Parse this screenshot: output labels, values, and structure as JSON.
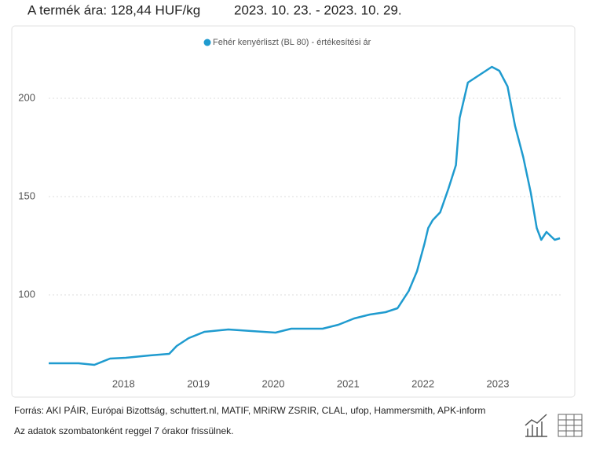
{
  "header": {
    "price": "A termék ára: 128,44 HUF/kg",
    "period": "2023. 10. 23. - 2023. 10. 29."
  },
  "chart_data": {
    "type": "line",
    "x": [
      2017.0,
      2017.4,
      2017.61,
      2017.82,
      2018.03,
      2018.35,
      2018.61,
      2018.71,
      2018.87,
      2019.08,
      2019.4,
      2019.71,
      2020.03,
      2020.24,
      2020.45,
      2020.66,
      2020.87,
      2021.08,
      2021.29,
      2021.5,
      2021.66,
      2021.81,
      2021.92,
      2022.02,
      2022.07,
      2022.13,
      2022.23,
      2022.34,
      2022.44,
      2022.49,
      2022.6,
      2022.76,
      2022.92,
      2023.02,
      2023.13,
      2023.23,
      2023.34,
      2023.44,
      2023.52,
      2023.58,
      2023.65,
      2023.76,
      2023.83
    ],
    "series": [
      {
        "name": "Fehér kenyérliszt (BL 80) - értékesítési ár",
        "color": "#1f9bcf",
        "values": [
          65.2,
          65.2,
          64.4,
          67.6,
          68,
          69.2,
          70,
          74,
          78,
          81.2,
          82.4,
          81.6,
          80.8,
          82.8,
          82.8,
          82.8,
          84.8,
          88,
          90,
          91.2,
          93.2,
          102,
          112,
          126,
          134,
          138,
          142,
          154,
          166,
          190,
          208,
          212,
          216,
          214,
          206,
          186,
          170,
          152,
          134,
          128,
          132,
          128,
          128.8
        ]
      }
    ],
    "xlim": [
      2017,
      2023.85
    ],
    "xticks": [
      2018,
      2019,
      2020,
      2021,
      2022,
      2023
    ],
    "ylim": [
      60,
      226
    ],
    "yticks": [
      100,
      150,
      200
    ],
    "grid": true
  },
  "footer": {
    "sources": "Forrás: AKI PÁIR, Európai Bizottság, schuttert.nl, MATIF, MRiRW ZSRIR, CLAL, ufop, Hammersmith, APK-inform",
    "note": "Az adatok szombatonként reggel 7 órakor frissülnek."
  }
}
